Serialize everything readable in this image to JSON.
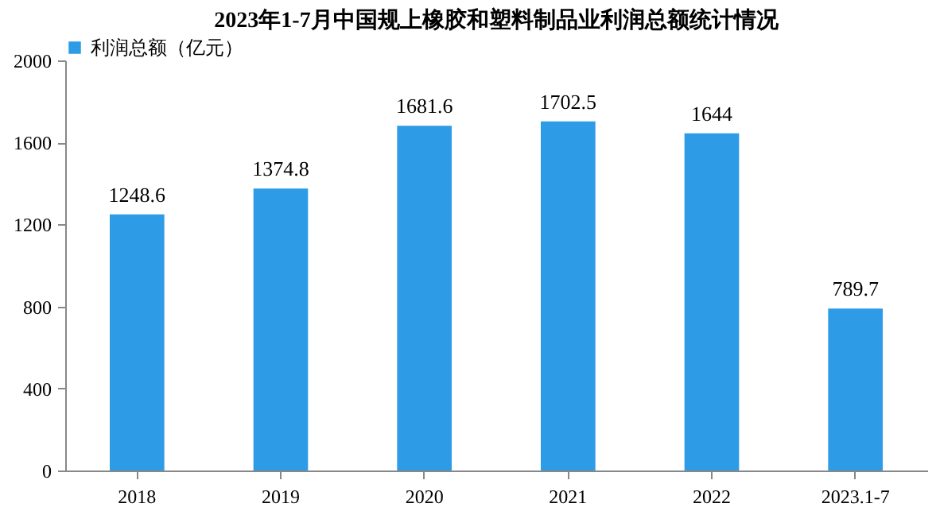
{
  "chart_data": {
    "type": "bar",
    "title": "2023年1-7月中国规上橡胶和塑料制品业利润总额统计情况",
    "categories": [
      "2018",
      "2019",
      "2020",
      "2021",
      "2022",
      "2023.1-7"
    ],
    "series": [
      {
        "name": "利润总额（亿元）",
        "color": "#2e9be6",
        "values": [
          1248.6,
          1374.8,
          1681.6,
          1702.5,
          1644,
          789.7
        ]
      }
    ],
    "ylim": [
      0,
      2000
    ],
    "yticks": [
      0,
      400,
      800,
      1200,
      1600,
      2000
    ],
    "data_labels": true,
    "grid": false,
    "legend": "top"
  }
}
